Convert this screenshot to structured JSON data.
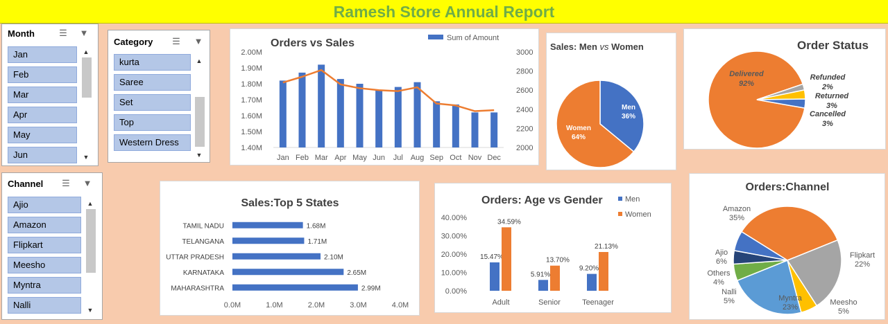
{
  "report_title": "Ramesh Store Annual Report",
  "slicers": {
    "month": {
      "title": "Month",
      "items": [
        "Jan",
        "Feb",
        "Mar",
        "Apr",
        "May",
        "Jun"
      ]
    },
    "category": {
      "title": "Category",
      "items": [
        "kurta",
        "Saree",
        "Set",
        "Top",
        "Western Dress"
      ]
    },
    "channel": {
      "title": "Channel",
      "items": [
        "Ajio",
        "Amazon",
        "Flipkart",
        "Meesho",
        "Myntra",
        "Nalli"
      ]
    }
  },
  "icons": {
    "multi_select": "multi-select-icon",
    "clear_filter": "clear-filter-icon",
    "scroll_up": "scroll-up-icon",
    "scroll_down": "scroll-down-icon"
  },
  "colors": {
    "blue": "#4472c4",
    "orange": "#ed7d31",
    "gray": "#a5a5a5",
    "yellow": "#ffc000",
    "light_blue": "#5b9bd5",
    "green": "#70ad47",
    "navy": "#264478",
    "title_green": "#70ad47",
    "banner": "#ffff00",
    "background": "#f8cbad"
  },
  "chart_data": [
    {
      "id": "orders_vs_sales",
      "type": "bar",
      "title": "Orders vs Sales",
      "categories": [
        "Jan",
        "Feb",
        "Mar",
        "Apr",
        "May",
        "Jun",
        "Jul",
        "Aug",
        "Sep",
        "Oct",
        "Nov",
        "Dec"
      ],
      "series": [
        {
          "name": "Sum of Amount",
          "type": "bar",
          "axis": "left",
          "values": [
            1.82,
            1.87,
            1.92,
            1.83,
            1.8,
            1.76,
            1.78,
            1.81,
            1.69,
            1.67,
            1.62,
            1.62
          ]
        },
        {
          "type": "line",
          "axis": "right",
          "values": [
            2680,
            2740,
            2810,
            2660,
            2620,
            2600,
            2590,
            2630,
            2460,
            2440,
            2380,
            2390
          ]
        }
      ],
      "y_left": {
        "min": 1.4,
        "max": 2.0,
        "ticks": [
          "1.40M",
          "1.50M",
          "1.60M",
          "1.70M",
          "1.80M",
          "1.90M",
          "2.00M"
        ]
      },
      "y_right": {
        "min": 2000,
        "max": 3000,
        "ticks": [
          "2000",
          "2200",
          "2400",
          "2600",
          "2800",
          "3000"
        ]
      },
      "legend": "top-right"
    },
    {
      "id": "sales_men_women",
      "type": "pie",
      "title_parts": [
        "Sales: Men ",
        "vs",
        " Women"
      ],
      "slices": [
        {
          "label": "Men",
          "pct_label": "36%",
          "value": 36
        },
        {
          "label": "Women",
          "pct_label": "64%",
          "value": 64
        }
      ]
    },
    {
      "id": "order_status",
      "type": "pie",
      "title": "Order Status",
      "slices": [
        {
          "label": "Delivered",
          "pct_label": "92%",
          "value": 92
        },
        {
          "label": "Refunded",
          "pct_label": "2%",
          "value": 2
        },
        {
          "label": "Returned",
          "pct_label": "3%",
          "value": 3
        },
        {
          "label": "Cancelled",
          "pct_label": "3%",
          "value": 3
        }
      ]
    },
    {
      "id": "top5_states",
      "type": "bar",
      "orientation": "horizontal",
      "title": "Sales:Top 5 States",
      "categories": [
        "TAMIL NADU",
        "TELANGANA",
        "UTTAR PRADESH",
        "KARNATAKA",
        "MAHARASHTRA"
      ],
      "values": [
        1.68,
        1.71,
        2.1,
        2.65,
        2.99
      ],
      "value_labels": [
        "1.68M",
        "1.71M",
        "2.10M",
        "2.65M",
        "2.99M"
      ],
      "x_ticks": [
        "0.0M",
        "1.0M",
        "2.0M",
        "3.0M",
        "4.0M"
      ],
      "xlim": [
        0,
        4
      ]
    },
    {
      "id": "age_vs_gender",
      "type": "bar",
      "title": "Orders: Age vs Gender",
      "categories": [
        "Adult",
        "Senior",
        "Teenager"
      ],
      "series": [
        {
          "name": "Men",
          "values": [
            15.47,
            5.91,
            9.2
          ],
          "labels": [
            "15.47%",
            "5.91%",
            "9.20%"
          ]
        },
        {
          "name": "Women",
          "values": [
            34.59,
            13.7,
            21.13
          ],
          "labels": [
            "34.59%",
            "13.70%",
            "21.13%"
          ]
        }
      ],
      "y_ticks": [
        "0.00%",
        "10.00%",
        "20.00%",
        "30.00%",
        "40.00%"
      ],
      "ylim": [
        0,
        40
      ],
      "legend": "top-right"
    },
    {
      "id": "orders_channel",
      "type": "pie",
      "title": "Orders:Channel",
      "slices": [
        {
          "label": "Amazon",
          "pct_label": "35%",
          "value": 35
        },
        {
          "label": "Flipkart",
          "pct_label": "22%",
          "value": 22
        },
        {
          "label": "Meesho",
          "pct_label": "5%",
          "value": 5
        },
        {
          "label": "Myntra",
          "pct_label": "23%",
          "value": 23
        },
        {
          "label": "Nalli",
          "pct_label": "5%",
          "value": 5
        },
        {
          "label": "Others",
          "pct_label": "4%",
          "value": 4
        },
        {
          "label": "Ajio",
          "pct_label": "6%",
          "value": 6
        }
      ]
    }
  ]
}
